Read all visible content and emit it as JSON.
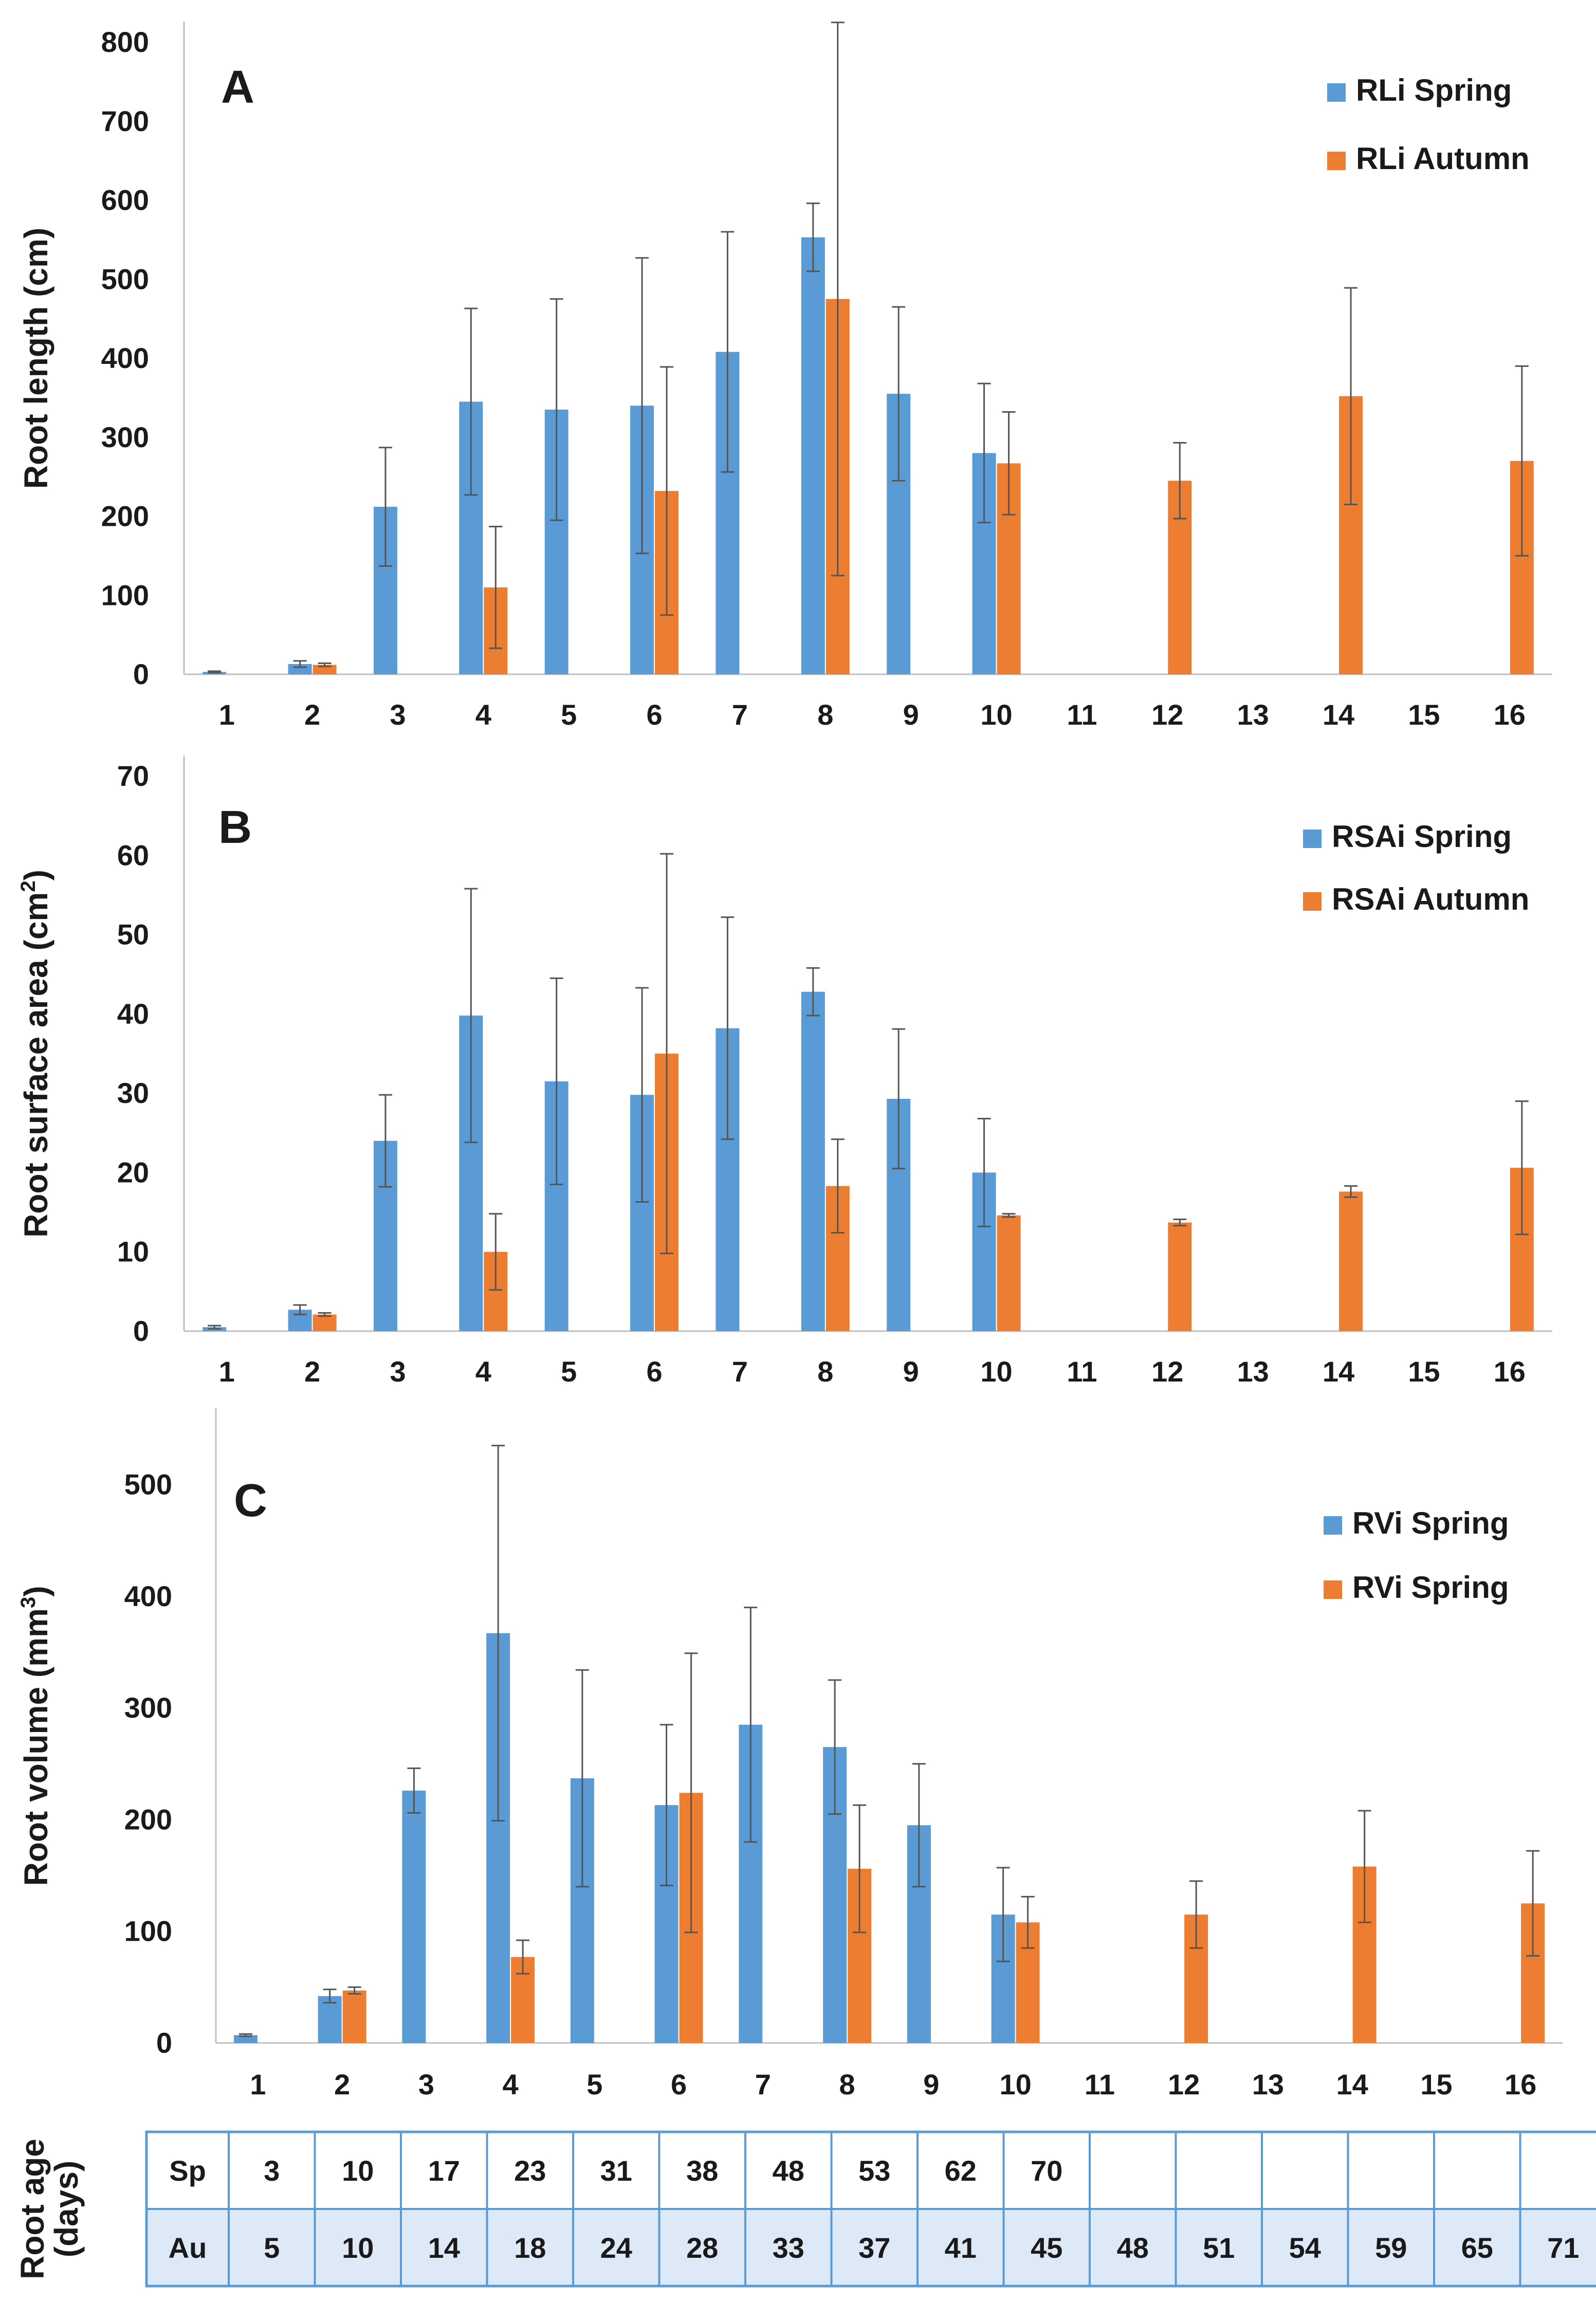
{
  "colors": {
    "spring": "#5b9bd5",
    "autumn": "#ed7d31",
    "table_border": "#5b9bd5",
    "table_shade": "#dde9f6"
  },
  "chart_data": [
    {
      "id": "A",
      "type": "bar",
      "panel_label": "A",
      "ylabel": "Root length (cm)",
      "ylim": [
        0,
        800
      ],
      "yticks": [
        0,
        100,
        200,
        300,
        400,
        500,
        600,
        700,
        800
      ],
      "categories": [
        "1",
        "2",
        "3",
        "4",
        "5",
        "6",
        "7",
        "8",
        "9",
        "10",
        "11",
        "12",
        "13",
        "14",
        "15",
        "16"
      ],
      "series": [
        {
          "name": "RLi Spring",
          "color": "spring",
          "values": [
            3,
            13,
            212,
            345,
            335,
            340,
            408,
            553,
            355,
            280,
            null,
            null,
            null,
            null,
            null,
            null
          ],
          "errors": [
            1,
            4,
            75,
            118,
            140,
            187,
            152,
            43,
            110,
            88,
            null,
            null,
            null,
            null,
            null,
            null
          ]
        },
        {
          "name": "RLi Autumn",
          "color": "autumn",
          "values": [
            null,
            12,
            null,
            110,
            null,
            232,
            null,
            475,
            null,
            267,
            null,
            245,
            null,
            352,
            null,
            270
          ],
          "errors": [
            null,
            2,
            null,
            77,
            null,
            157,
            null,
            350,
            null,
            65,
            null,
            48,
            null,
            137,
            null,
            120
          ]
        }
      ]
    },
    {
      "id": "B",
      "type": "bar",
      "panel_label": "B",
      "ylabel": "Root surface area (cm",
      "ylabel_sup": "2",
      "ylabel_end": ")",
      "ylim": [
        0,
        70
      ],
      "yticks": [
        0,
        10,
        20,
        30,
        40,
        50,
        60,
        70
      ],
      "categories": [
        "1",
        "2",
        "3",
        "4",
        "5",
        "6",
        "7",
        "8",
        "9",
        "10",
        "11",
        "12",
        "13",
        "14",
        "15",
        "16"
      ],
      "series": [
        {
          "name": "RSAi Spring",
          "color": "spring",
          "values": [
            0.5,
            2.7,
            24,
            39.8,
            31.5,
            29.8,
            38.2,
            42.8,
            29.3,
            20,
            null,
            null,
            null,
            null,
            null,
            null
          ],
          "errors": [
            0.2,
            0.6,
            5.8,
            16,
            13,
            13.5,
            14,
            3,
            8.8,
            6.8,
            null,
            null,
            null,
            null,
            null,
            null
          ]
        },
        {
          "name": "RSAi Autumn",
          "color": "autumn",
          "values": [
            null,
            2.1,
            null,
            10,
            null,
            35,
            null,
            18.3,
            null,
            14.6,
            null,
            13.7,
            null,
            17.6,
            null,
            20.6
          ],
          "errors": [
            null,
            0.2,
            null,
            4.8,
            null,
            25.2,
            null,
            5.9,
            null,
            0.2,
            null,
            0.4,
            null,
            0.7,
            null,
            8.4
          ]
        }
      ]
    },
    {
      "id": "C",
      "type": "bar",
      "panel_label": "C",
      "ylabel": "Root volume (mm",
      "ylabel_sup": "3",
      "ylabel_end": ")",
      "ylim": [
        0,
        550
      ],
      "yticks": [
        0,
        100,
        200,
        300,
        400,
        500
      ],
      "categories": [
        "1",
        "2",
        "3",
        "4",
        "5",
        "6",
        "7",
        "8",
        "9",
        "10",
        "11",
        "12",
        "13",
        "14",
        "15",
        "16"
      ],
      "series": [
        {
          "name": "RVi Spring",
          "color": "spring",
          "values": [
            7,
            42,
            226,
            367,
            237,
            213,
            285,
            265,
            195,
            115,
            null,
            null,
            null,
            null,
            null,
            null
          ],
          "errors": [
            1,
            6,
            20,
            168,
            97,
            72,
            105,
            60,
            55,
            42,
            null,
            null,
            null,
            null,
            null,
            null
          ]
        },
        {
          "name": "RVi Spring",
          "color": "autumn",
          "values": [
            null,
            47,
            null,
            77,
            null,
            224,
            null,
            156,
            null,
            108,
            null,
            115,
            null,
            158,
            null,
            125
          ],
          "errors": [
            null,
            3,
            null,
            15,
            null,
            125,
            null,
            57,
            null,
            23,
            null,
            30,
            null,
            50,
            null,
            47
          ]
        }
      ]
    }
  ],
  "table": {
    "side_label_line1": "Root age",
    "side_label_line2": "(days)",
    "rows": [
      {
        "label": "Sp",
        "cells": [
          "3",
          "10",
          "17",
          "23",
          "31",
          "38",
          "48",
          "53",
          "62",
          "70",
          "",
          "",
          "",
          "",
          "",
          ""
        ]
      },
      {
        "label": "Au",
        "cells": [
          "5",
          "10",
          "14",
          "18",
          "24",
          "28",
          "33",
          "37",
          "41",
          "45",
          "48",
          "51",
          "54",
          "59",
          "65",
          "71"
        ]
      }
    ]
  }
}
